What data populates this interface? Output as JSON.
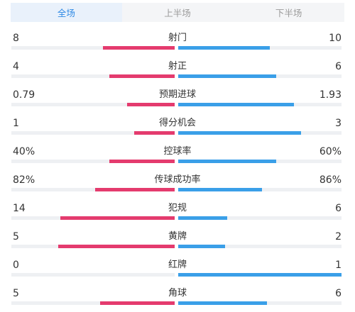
{
  "tabs": [
    {
      "label": "全场",
      "active": true
    },
    {
      "label": "上半场",
      "active": false
    },
    {
      "label": "下半场",
      "active": false
    }
  ],
  "colors": {
    "home": "#e43b6e",
    "away": "#3a9fe8",
    "accent": "#2f8ae5"
  },
  "stats": [
    {
      "label": "射门",
      "home": "8",
      "away": "10",
      "home_fill": 0.44,
      "away_fill": 0.56
    },
    {
      "label": "射正",
      "home": "4",
      "away": "6",
      "home_fill": 0.4,
      "away_fill": 0.6
    },
    {
      "label": "预期进球",
      "home": "0.79",
      "away": "1.93",
      "home_fill": 0.29,
      "away_fill": 0.71
    },
    {
      "label": "得分机会",
      "home": "1",
      "away": "3",
      "home_fill": 0.25,
      "away_fill": 0.75
    },
    {
      "label": "控球率",
      "home": "40%",
      "away": "60%",
      "home_fill": 0.4,
      "away_fill": 0.6
    },
    {
      "label": "传球成功率",
      "home": "82%",
      "away": "86%",
      "home_fill": 0.488,
      "away_fill": 0.512
    },
    {
      "label": "犯规",
      "home": "14",
      "away": "6",
      "home_fill": 0.7,
      "away_fill": 0.3
    },
    {
      "label": "黄牌",
      "home": "5",
      "away": "2",
      "home_fill": 0.714,
      "away_fill": 0.286
    },
    {
      "label": "红牌",
      "home": "0",
      "away": "1",
      "home_fill": 0.0,
      "away_fill": 1.0
    },
    {
      "label": "角球",
      "home": "5",
      "away": "6",
      "home_fill": 0.455,
      "away_fill": 0.545
    }
  ]
}
